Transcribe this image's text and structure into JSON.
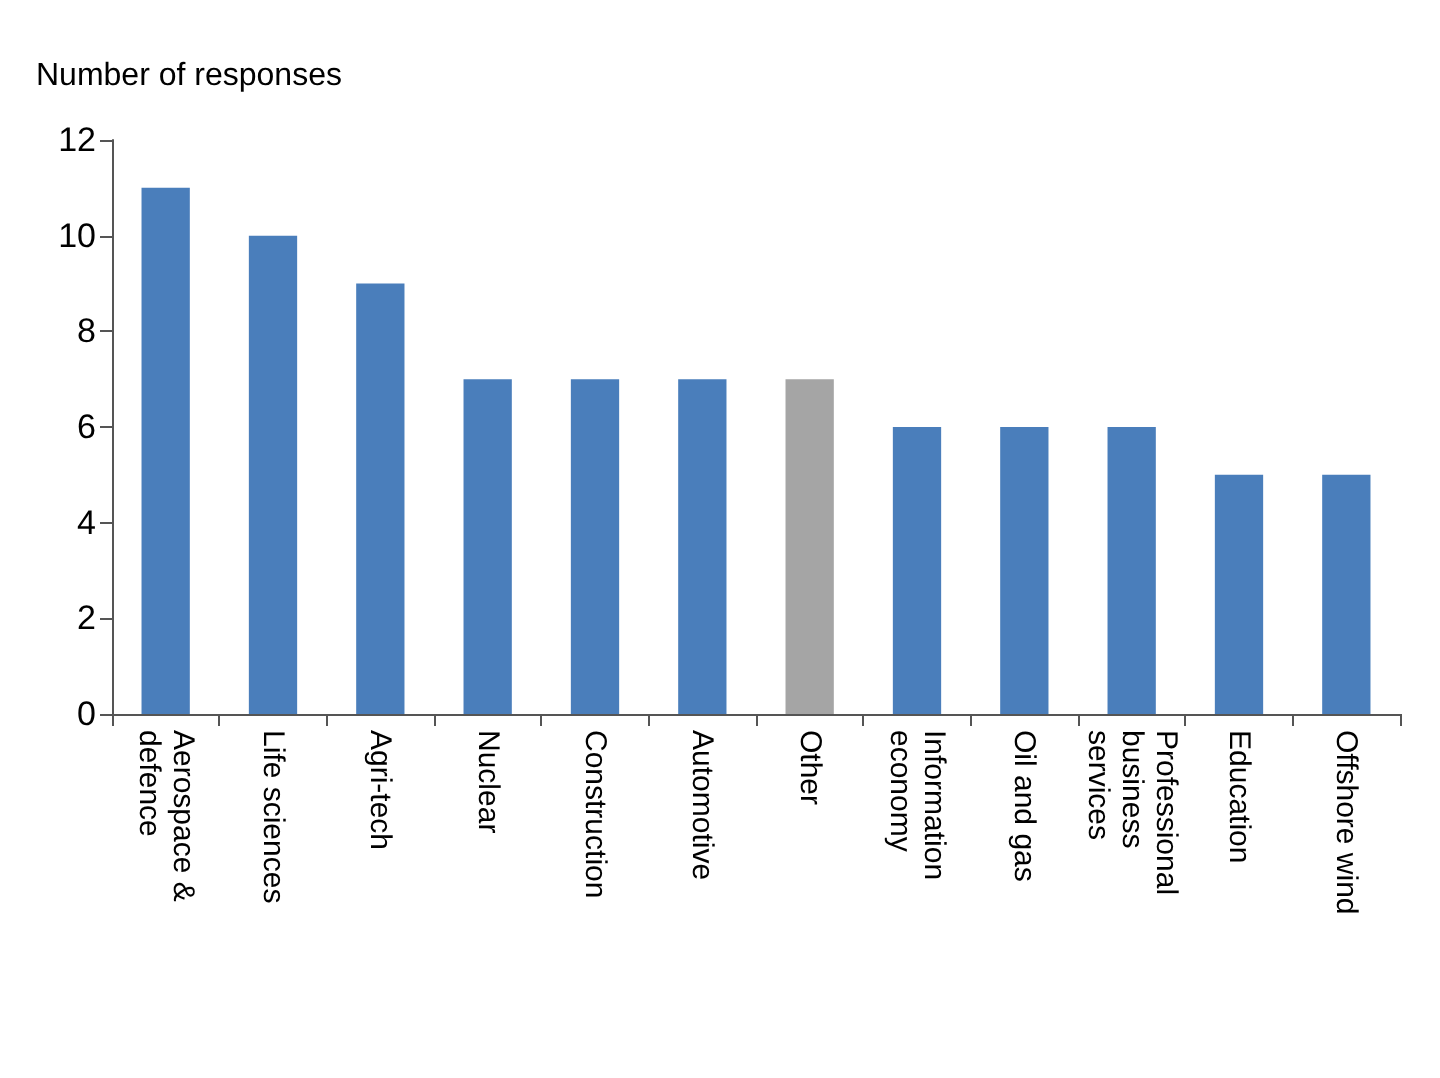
{
  "chart_data": {
    "type": "bar",
    "ylabel": "Number of responses",
    "categories": [
      "Aerospace & defence",
      "Life sciences",
      "Agri-tech",
      "Nuclear",
      "Construction",
      "Automotive",
      "Other",
      "Information economy",
      "Oil and gas",
      "Professional business services",
      "Education",
      "Offshore wind"
    ],
    "values": [
      11,
      10,
      9,
      7,
      7,
      7,
      7,
      6,
      6,
      6,
      5,
      5
    ],
    "colors": [
      "#4a7ebb",
      "#4a7ebb",
      "#4a7ebb",
      "#4a7ebb",
      "#4a7ebb",
      "#4a7ebb",
      "#a5a5a5",
      "#4a7ebb",
      "#4a7ebb",
      "#4a7ebb",
      "#4a7ebb",
      "#4a7ebb"
    ],
    "ylim": [
      0,
      12
    ],
    "yticks": [
      0,
      2,
      4,
      6,
      8,
      10,
      12
    ],
    "grid": false
  }
}
